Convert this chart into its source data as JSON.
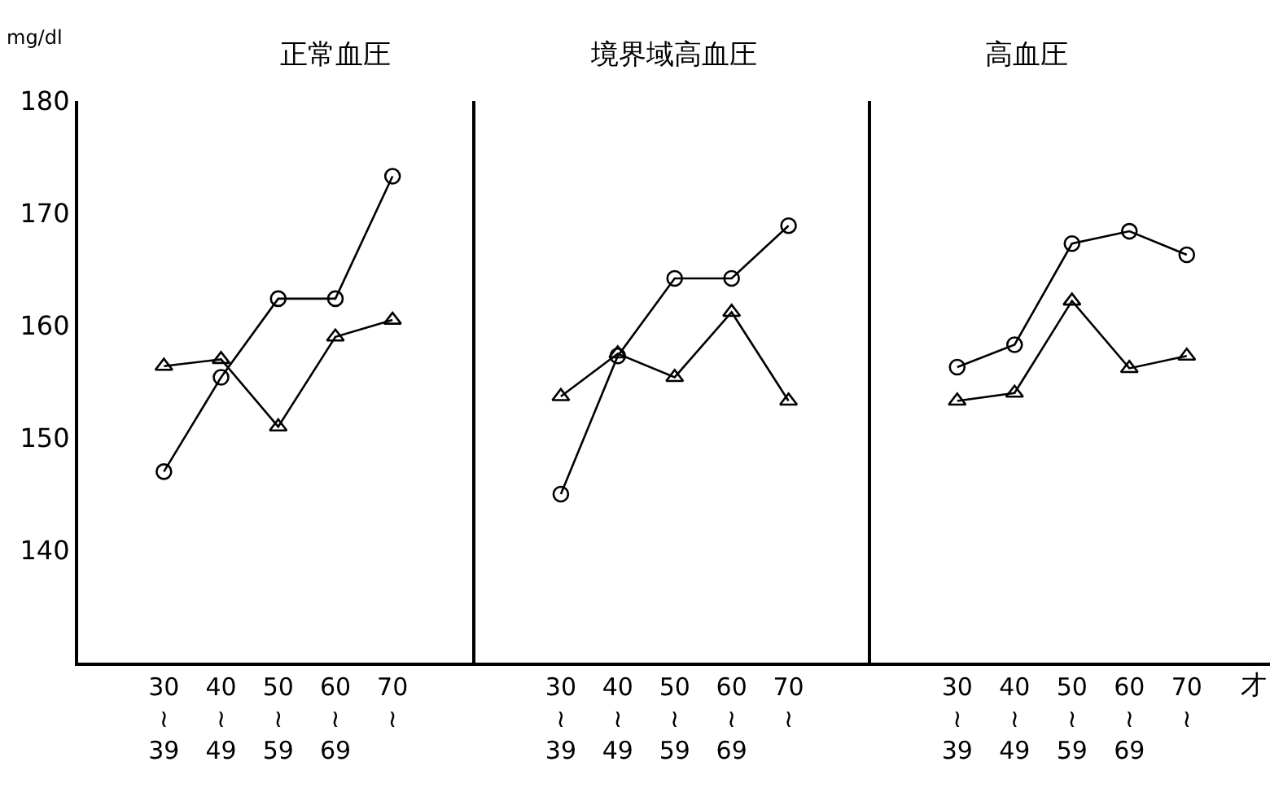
{
  "chart_data": [
    {
      "type": "line",
      "title": "正常血圧",
      "ylabel": "mg/dl",
      "categories": [
        "30\n≀\n39",
        "40\n≀\n49",
        "50\n≀\n59",
        "60\n≀\n69",
        "70\n≀"
      ],
      "ylim": [
        130,
        180
      ],
      "yticks": [
        140,
        150,
        160,
        170,
        180
      ],
      "line_style": "solid",
      "series": [
        {
          "color": "#000000",
          "marker": "circle",
          "values": [
            147,
            155.4,
            162.4,
            162.4,
            173.3
          ]
        },
        {
          "color": "#000000",
          "marker": "triangle",
          "values": [
            156.4,
            157,
            151,
            159,
            160.5
          ]
        }
      ]
    },
    {
      "type": "line",
      "title": "境界域高血圧",
      "categories": [
        "30\n≀\n39",
        "40\n≀\n49",
        "50\n≀\n59",
        "60\n≀\n69",
        "70\n≀"
      ],
      "ylim": [
        130,
        180
      ],
      "tick_labels": "x",
      "line_style": "solid",
      "series": [
        {
          "color": "#000000",
          "marker": "circle",
          "values": [
            145,
            157.3,
            164.2,
            164.2,
            168.9
          ]
        },
        {
          "color": "#000000",
          "marker": "triangle",
          "values": [
            153.7,
            157.5,
            155.4,
            161.2,
            153.3
          ]
        }
      ]
    },
    {
      "type": "line",
      "title": "高血圧",
      "xlabel": "才",
      "categories": [
        "30\n≀\n39",
        "40\n≀\n49",
        "50\n≀\n59",
        "60\n≀\n69",
        "70\n≀"
      ],
      "ylim": [
        130,
        180
      ],
      "tick_labels": "x",
      "line_style": "solid",
      "series": [
        {
          "color": "#000000",
          "marker": "circle",
          "values": [
            156.3,
            158.3,
            167.3,
            168.4,
            166.3
          ]
        },
        {
          "color": "#000000",
          "marker": "triangle",
          "values": [
            153.3,
            154,
            162.2,
            156.2,
            157.3
          ]
        }
      ]
    }
  ]
}
